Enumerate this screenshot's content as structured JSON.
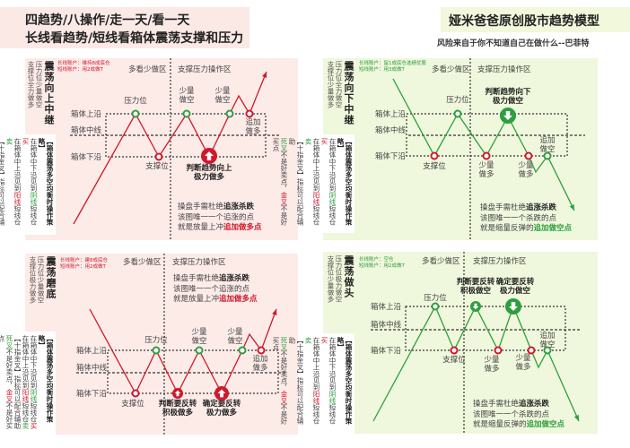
{
  "header": {
    "title_line1": "四趋势/八操作/走一天/看一天",
    "title_line2": "长线看趋势/短线看箱体震荡支撑和压力",
    "brand_title": "娅米爸爸原创股市趋势模型",
    "quote": "风险来自于你不知道自己在做什么--巴菲特"
  },
  "colors": {
    "red": "#d0182c",
    "green": "#2e9e3e",
    "pink_bg": "#fdebe8",
    "green_bg": "#eff7dc"
  },
  "strategy": {
    "heading": "【箱体震荡多空均衡时操作策略】",
    "buy_pre": "在箱体中下沿见到",
    "buy_candle": "阴线",
    "buy_mid": "短线仓",
    "buy_act": "买",
    "sell_pre": "在箱体中上沿见到",
    "sell_candle": "阳线",
    "sell_mid": "短线仓",
    "sell_act": "卖",
    "indicator": "【十指金叉】指标可以配合辅助",
    "cross_a": "死叉",
    "cross_a_text": "不是好卖点，",
    "cross_b": "金叉",
    "cross_b_text": "不是好买点"
  },
  "box_labels": [
    "箱体上沿",
    "箱体中线",
    "箱体下沿"
  ],
  "zones": {
    "left": "多看少做区",
    "right": "支撑压力操作区"
  },
  "panels": [
    {
      "title": "震荡向上中继",
      "side_notes": [
        "压力位少量做空",
        "支撑位全力做多"
      ],
      "accounts": [
        "长线账户：维持8成底仓",
        "短线账户：用2成做T"
      ],
      "trend": "up",
      "labels": [
        "压力位",
        "少量\n做空",
        "少量\n做空",
        "追加\n做多",
        "支撑位",
        "判断趋势向上\n极力做多"
      ],
      "note": {
        "l1": "操盘手需杜绝",
        "l1b": "追涨杀跌",
        "l2": "该图唯一一个追涨的点",
        "l3": "就是放量上冲",
        "l3h": "追加做多点"
      }
    },
    {
      "title": "震荡向下中继",
      "side_notes": [
        "压力位全力做空",
        "支撑位少量做多"
      ],
      "accounts": [
        "长线账户：留1成底仓选绩优股",
        "短线账户：用3成做T"
      ],
      "trend": "down",
      "labels": [
        "支撑位",
        "压力位",
        "判断趋势向下\n极力做空",
        "少量\n做多",
        "少量\n做多",
        "追加\n做空"
      ],
      "note": {
        "l1": "操盘手需杜绝",
        "l1b": "追涨杀跌",
        "l2": "该图唯一一个杀跌的点",
        "l3": "就是缩量反弹的",
        "l3h": "追加做空点"
      }
    },
    {
      "title": "震荡磨底",
      "side_notes": [
        "压力位少量做空",
        "支撑位极力做多"
      ],
      "accounts": [
        "长线账户：建8成底仓",
        "短线账户：用2成做T"
      ],
      "trend": "up",
      "labels": [
        "支撑位",
        "压力位",
        "少量\n做空",
        "少量\n做空",
        "追加\n做多",
        "判断要反转\n积极做多",
        "确定要反转\n极力做多"
      ],
      "note": {
        "l1": "操盘手需杜绝",
        "l1b": "追涨杀跌",
        "l2": "该图唯一一个追涨的点",
        "l3": "就是放量上冲",
        "l3h": "追加做多点"
      }
    },
    {
      "title": "震荡做头",
      "side_notes": [
        "压力位极力做空",
        "支撑位少量做多"
      ],
      "accounts": [
        "长线账户：空仓",
        "短线账户：用2成做T"
      ],
      "trend": "down",
      "labels": [
        "压力位",
        "支撑位",
        "少量\n做多",
        "少量\n做多",
        "追加\n做空",
        "判断要反转\n积极做空",
        "确定要反转\n极力做空"
      ],
      "note": {
        "l1": "操盘手需杜绝",
        "l1b": "追涨杀跌",
        "l2": "该图唯一一个杀跌的点",
        "l3": "就是缩量反弹的",
        "l3h": "追加做空点"
      }
    }
  ]
}
